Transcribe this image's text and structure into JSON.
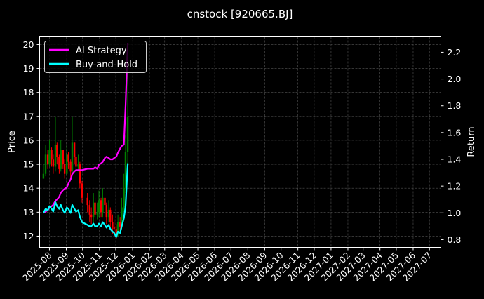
{
  "chart_data": {
    "type": "line",
    "title": "cnstock [920665.BJ]",
    "ylabel": "Price",
    "ylabel_right": "Return",
    "xlim": [
      "2025-07-14",
      "2027-07-22"
    ],
    "ylim": [
      11.53,
      20.32
    ],
    "ylim_right": [
      0.742,
      2.315
    ],
    "grid": true,
    "legend_placement": "top-left",
    "x_tick_labels": [
      "2025-08",
      "2025-09",
      "2025-10",
      "2025-11",
      "2025-12",
      "2026-01",
      "2026-02",
      "2026-03",
      "2026-04",
      "2026-05",
      "2026-06",
      "2026-07",
      "2026-08",
      "2026-09",
      "2026-10",
      "2026-11",
      "2026-12",
      "2027-01",
      "2027-02",
      "2027-03",
      "2027-04",
      "2027-05",
      "2027-06",
      "2027-07"
    ],
    "y_ticks": [
      12,
      13,
      14,
      15,
      16,
      17,
      18,
      19,
      20
    ],
    "y_ticks_right": [
      "0.8",
      "1.0",
      "1.2",
      "1.4",
      "1.6",
      "1.8",
      "2.0",
      "2.2"
    ],
    "dates": [
      "2025-07-21",
      "2025-07-25",
      "2025-07-29",
      "2025-08-01",
      "2025-08-05",
      "2025-08-08",
      "2025-08-12",
      "2025-08-15",
      "2025-08-19",
      "2025-08-22",
      "2025-08-26",
      "2025-08-29",
      "2025-09-02",
      "2025-09-05",
      "2025-09-09",
      "2025-09-12",
      "2025-09-16",
      "2025-09-19",
      "2025-09-23",
      "2025-09-26",
      "2025-09-30",
      "2025-10-10",
      "2025-10-14",
      "2025-10-17",
      "2025-10-21",
      "2025-10-24",
      "2025-10-28",
      "2025-10-31",
      "2025-11-04",
      "2025-11-07",
      "2025-11-11",
      "2025-11-14",
      "2025-11-18",
      "2025-11-21",
      "2025-11-25",
      "2025-11-28",
      "2025-12-02",
      "2025-12-05",
      "2025-12-09",
      "2025-12-12",
      "2025-12-16",
      "2025-12-19",
      "2025-12-23"
    ],
    "price_close": [
      14.6,
      15.4,
      15.0,
      15.6,
      15.2,
      14.9,
      15.8,
      15.3,
      14.8,
      15.6,
      15.0,
      14.6,
      15.4,
      15.1,
      14.7,
      15.9,
      15.3,
      14.9,
      15.0,
      14.2,
      13.6,
      13.3,
      12.9,
      12.8,
      13.4,
      12.9,
      13.0,
      13.5,
      13.0,
      13.6,
      13.3,
      12.8,
      13.1,
      12.6,
      12.4,
      12.3,
      12.1,
      12.6,
      12.4,
      13.2,
      14.0,
      15.5,
      17.0
    ],
    "price_high": [
      15.0,
      15.8,
      15.6,
      16.0,
      15.7,
      15.4,
      17.0,
      15.9,
      15.4,
      16.0,
      15.6,
      15.2,
      15.8,
      15.5,
      15.2,
      17.0,
      15.9,
      15.4,
      15.4,
      15.1,
      14.3,
      13.8,
      13.5,
      13.2,
      13.8,
      13.6,
      13.4,
      13.9,
      13.6,
      14.0,
      13.8,
      13.4,
      13.5,
      13.2,
      12.9,
      12.7,
      12.5,
      12.9,
      12.8,
      13.6,
      14.6,
      16.2,
      19.6
    ],
    "price_low": [
      14.4,
      14.5,
      14.8,
      14.9,
      14.9,
      14.6,
      14.7,
      15.0,
      14.6,
      14.7,
      14.8,
      14.4,
      14.5,
      14.8,
      14.4,
      14.6,
      15.0,
      14.7,
      14.7,
      14.0,
      13.4,
      13.0,
      12.6,
      12.5,
      12.6,
      12.6,
      12.7,
      12.8,
      12.8,
      12.8,
      13.0,
      12.5,
      12.6,
      12.3,
      12.1,
      12.0,
      11.9,
      12.0,
      12.2,
      12.3,
      13.0,
      13.8,
      14.8
    ],
    "series": [
      {
        "name": "AI Strategy",
        "color": "#ff00ff",
        "values": [
          1.0,
          1.01,
          1.02,
          1.04,
          1.05,
          1.06,
          1.09,
          1.1,
          1.12,
          1.15,
          1.17,
          1.18,
          1.19,
          1.22,
          1.25,
          1.29,
          1.31,
          1.32,
          1.32,
          1.32,
          1.32,
          1.33,
          1.33,
          1.33,
          1.33,
          1.34,
          1.33,
          1.36,
          1.37,
          1.38,
          1.41,
          1.42,
          1.41,
          1.4,
          1.4,
          1.41,
          1.42,
          1.45,
          1.48,
          1.5,
          1.51,
          1.8,
          2.27
        ]
      },
      {
        "name": "Buy-and-Hold",
        "color": "#00ffff",
        "values": [
          1.0,
          1.03,
          1.02,
          1.05,
          1.03,
          1.01,
          1.08,
          1.05,
          1.03,
          1.06,
          1.02,
          1.0,
          1.04,
          1.03,
          1.0,
          1.06,
          1.03,
          1.01,
          1.02,
          0.97,
          0.93,
          0.91,
          0.9,
          0.9,
          0.92,
          0.9,
          0.9,
          0.92,
          0.9,
          0.93,
          0.91,
          0.89,
          0.91,
          0.88,
          0.86,
          0.85,
          0.82,
          0.86,
          0.85,
          0.9,
          0.96,
          1.05,
          1.37
        ]
      }
    ],
    "candle_colors": {
      "up": "#008000",
      "down": "#ff0000"
    }
  }
}
